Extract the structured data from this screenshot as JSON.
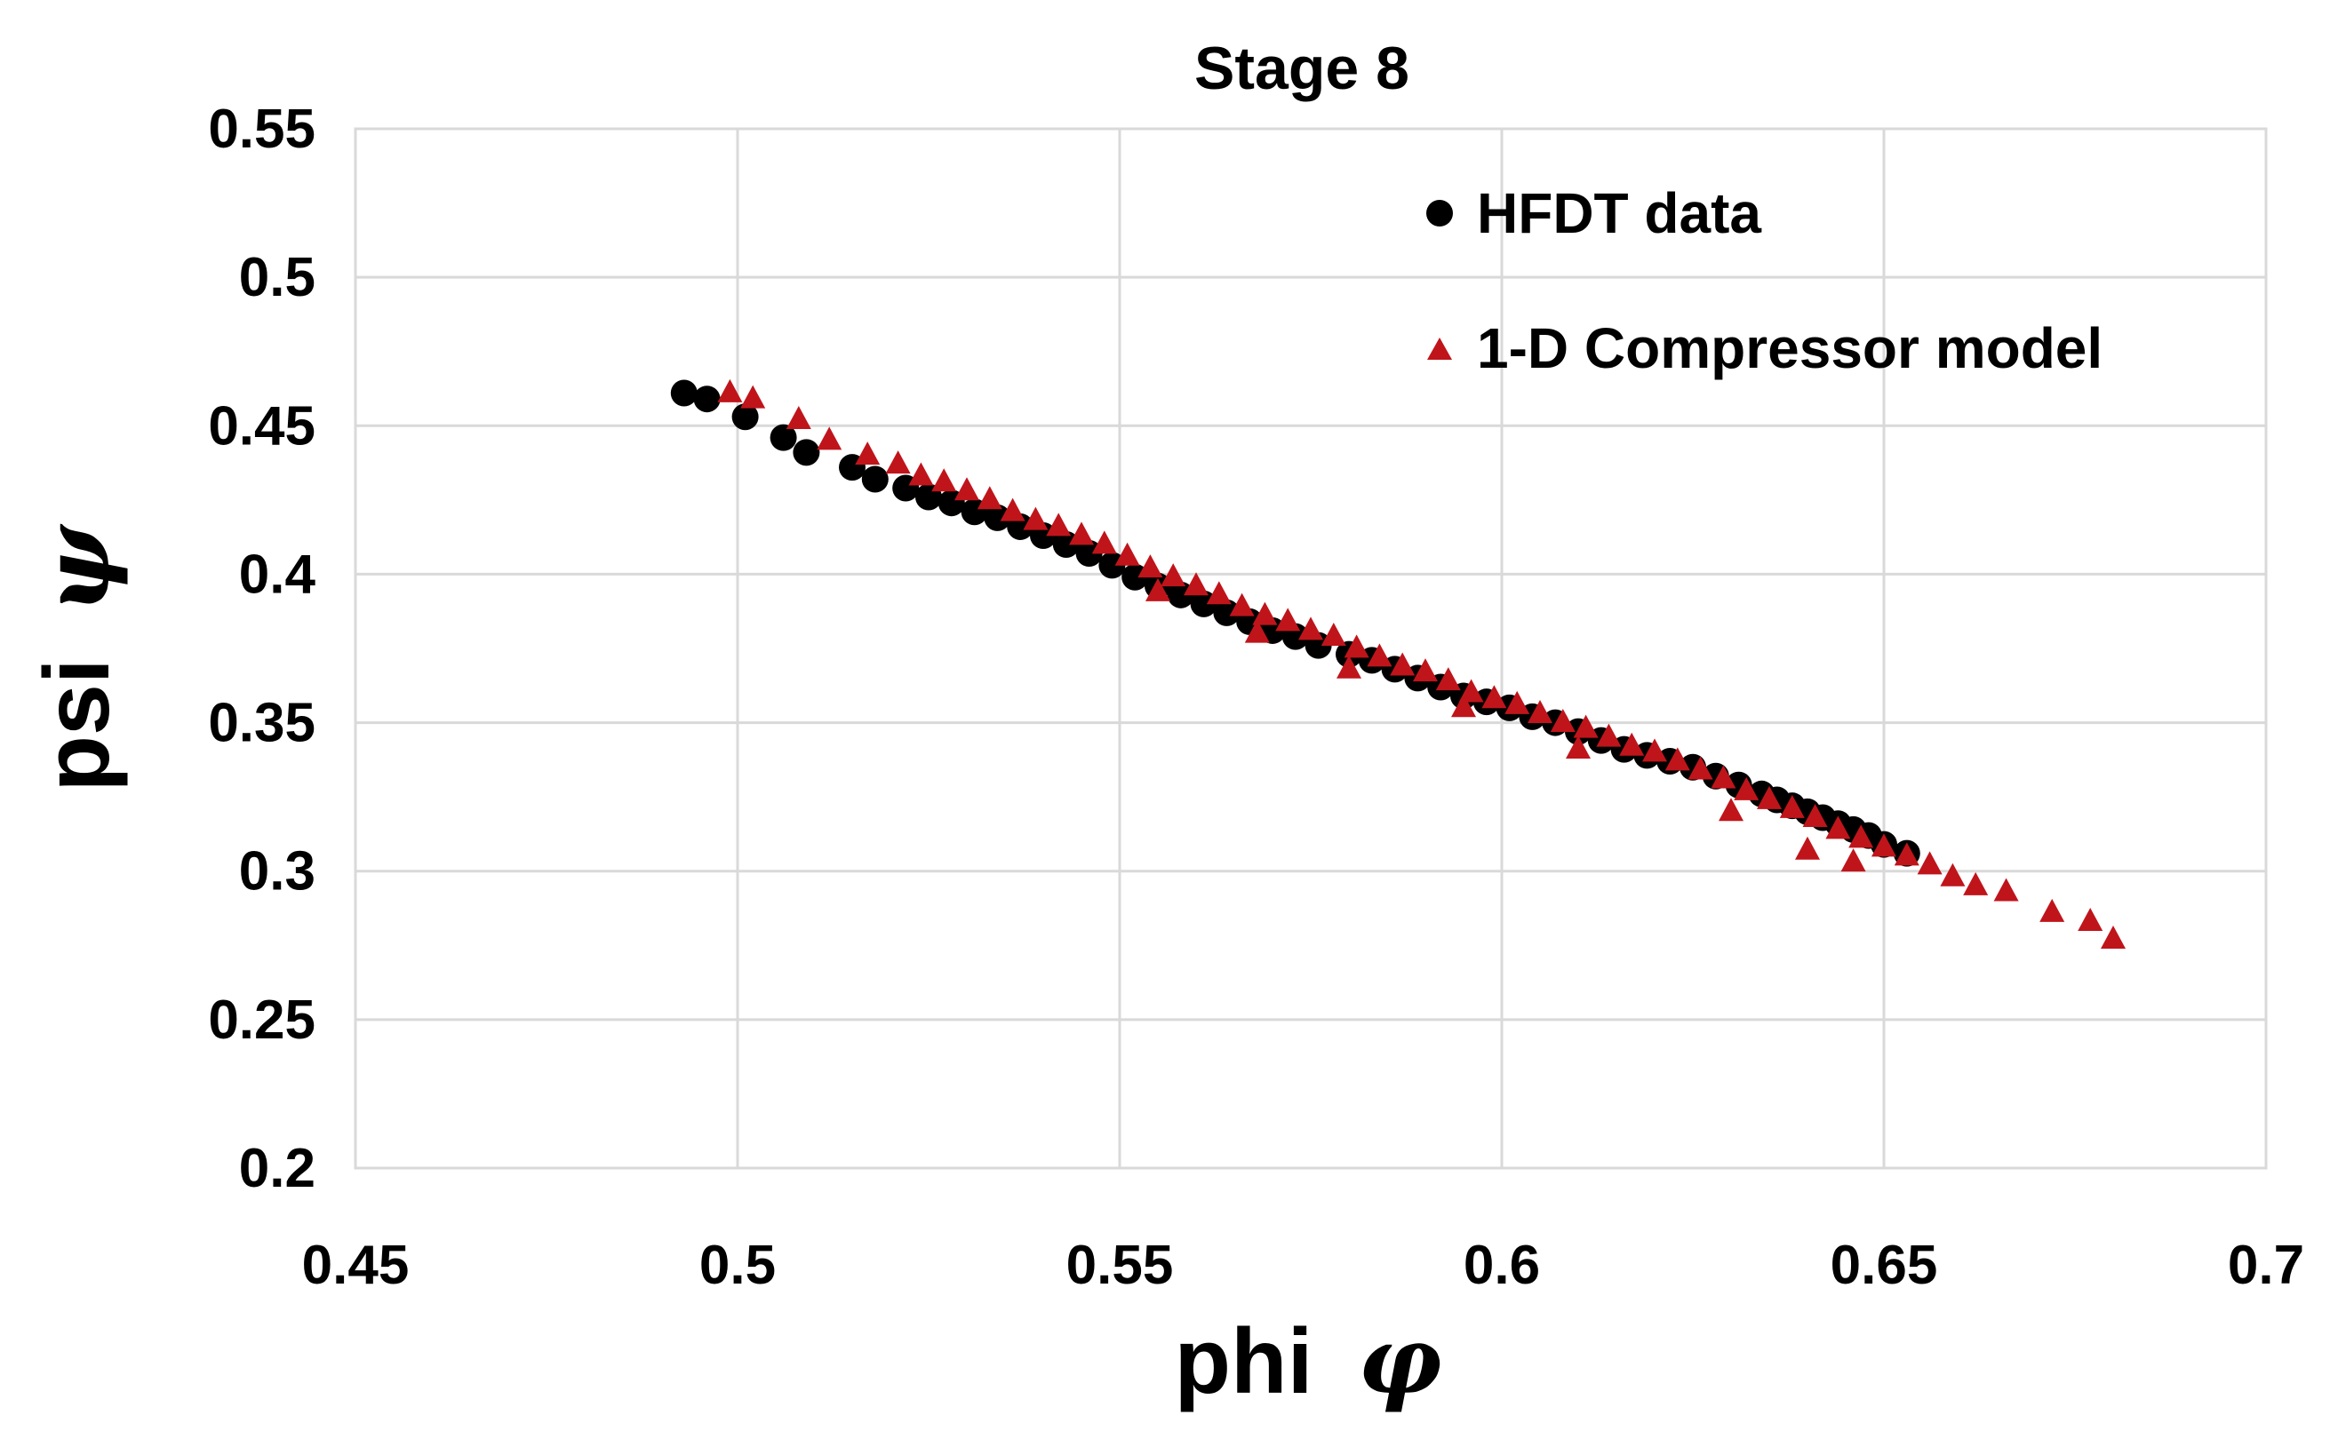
{
  "chart_data": {
    "type": "scatter",
    "title": "Stage 8",
    "xlabel": "phi",
    "xlabel_symbol": "φ",
    "ylabel": "psi",
    "ylabel_symbol": "ψ",
    "xlim": [
      0.45,
      0.7
    ],
    "ylim": [
      0.2,
      0.55
    ],
    "xticks": [
      "0.45",
      "0.5",
      "0.55",
      "0.6",
      "0.65",
      "0.7"
    ],
    "yticks": [
      "0.2",
      "0.25",
      "0.3",
      "0.35",
      "0.4",
      "0.45",
      "0.5",
      "0.55"
    ],
    "grid": true,
    "legend_position": "top-right",
    "series": [
      {
        "name": "HFDT data",
        "marker": "circle",
        "color": "#000000",
        "x": [
          0.493,
          0.496,
          0.501,
          0.506,
          0.509,
          0.515,
          0.518,
          0.522,
          0.525,
          0.528,
          0.531,
          0.534,
          0.537,
          0.54,
          0.543,
          0.546,
          0.549,
          0.552,
          0.555,
          0.558,
          0.561,
          0.564,
          0.567,
          0.57,
          0.573,
          0.576,
          0.58,
          0.583,
          0.586,
          0.589,
          0.592,
          0.595,
          0.598,
          0.601,
          0.604,
          0.607,
          0.61,
          0.613,
          0.616,
          0.619,
          0.622,
          0.625,
          0.628,
          0.631,
          0.634,
          0.636,
          0.638,
          0.64,
          0.642,
          0.644,
          0.646,
          0.648,
          0.65,
          0.653
        ],
        "y": [
          0.461,
          0.459,
          0.453,
          0.446,
          0.441,
          0.436,
          0.432,
          0.429,
          0.426,
          0.424,
          0.421,
          0.419,
          0.416,
          0.413,
          0.41,
          0.407,
          0.403,
          0.399,
          0.396,
          0.393,
          0.39,
          0.387,
          0.384,
          0.381,
          0.379,
          0.376,
          0.373,
          0.371,
          0.368,
          0.365,
          0.362,
          0.359,
          0.357,
          0.355,
          0.352,
          0.35,
          0.347,
          0.344,
          0.341,
          0.339,
          0.337,
          0.335,
          0.332,
          0.329,
          0.326,
          0.324,
          0.322,
          0.32,
          0.318,
          0.316,
          0.314,
          0.312,
          0.309,
          0.306
        ]
      },
      {
        "name": "1-D Compressor model",
        "marker": "triangle",
        "color": "#c0141b",
        "x": [
          0.499,
          0.502,
          0.508,
          0.512,
          0.517,
          0.521,
          0.524,
          0.527,
          0.53,
          0.533,
          0.536,
          0.539,
          0.542,
          0.545,
          0.548,
          0.551,
          0.554,
          0.557,
          0.56,
          0.563,
          0.566,
          0.569,
          0.572,
          0.575,
          0.578,
          0.581,
          0.584,
          0.587,
          0.59,
          0.593,
          0.596,
          0.599,
          0.602,
          0.605,
          0.608,
          0.611,
          0.614,
          0.617,
          0.62,
          0.623,
          0.626,
          0.629,
          0.632,
          0.635,
          0.638,
          0.641,
          0.644,
          0.647,
          0.65,
          0.653,
          0.656,
          0.659,
          0.662,
          0.666,
          0.672,
          0.677,
          0.68,
          0.595,
          0.58,
          0.568,
          0.555,
          0.61,
          0.63,
          0.64,
          0.646
        ],
        "y": [
          0.461,
          0.459,
          0.452,
          0.445,
          0.44,
          0.437,
          0.433,
          0.431,
          0.428,
          0.425,
          0.421,
          0.418,
          0.416,
          0.413,
          0.41,
          0.406,
          0.402,
          0.399,
          0.396,
          0.393,
          0.389,
          0.386,
          0.384,
          0.381,
          0.379,
          0.375,
          0.372,
          0.369,
          0.367,
          0.364,
          0.36,
          0.358,
          0.356,
          0.353,
          0.35,
          0.348,
          0.345,
          0.342,
          0.34,
          0.337,
          0.334,
          0.331,
          0.327,
          0.324,
          0.321,
          0.318,
          0.314,
          0.311,
          0.308,
          0.305,
          0.302,
          0.298,
          0.295,
          0.293,
          0.286,
          0.283,
          0.277,
          0.355,
          0.368,
          0.38,
          0.394,
          0.341,
          0.32,
          0.307,
          0.303
        ]
      }
    ]
  }
}
